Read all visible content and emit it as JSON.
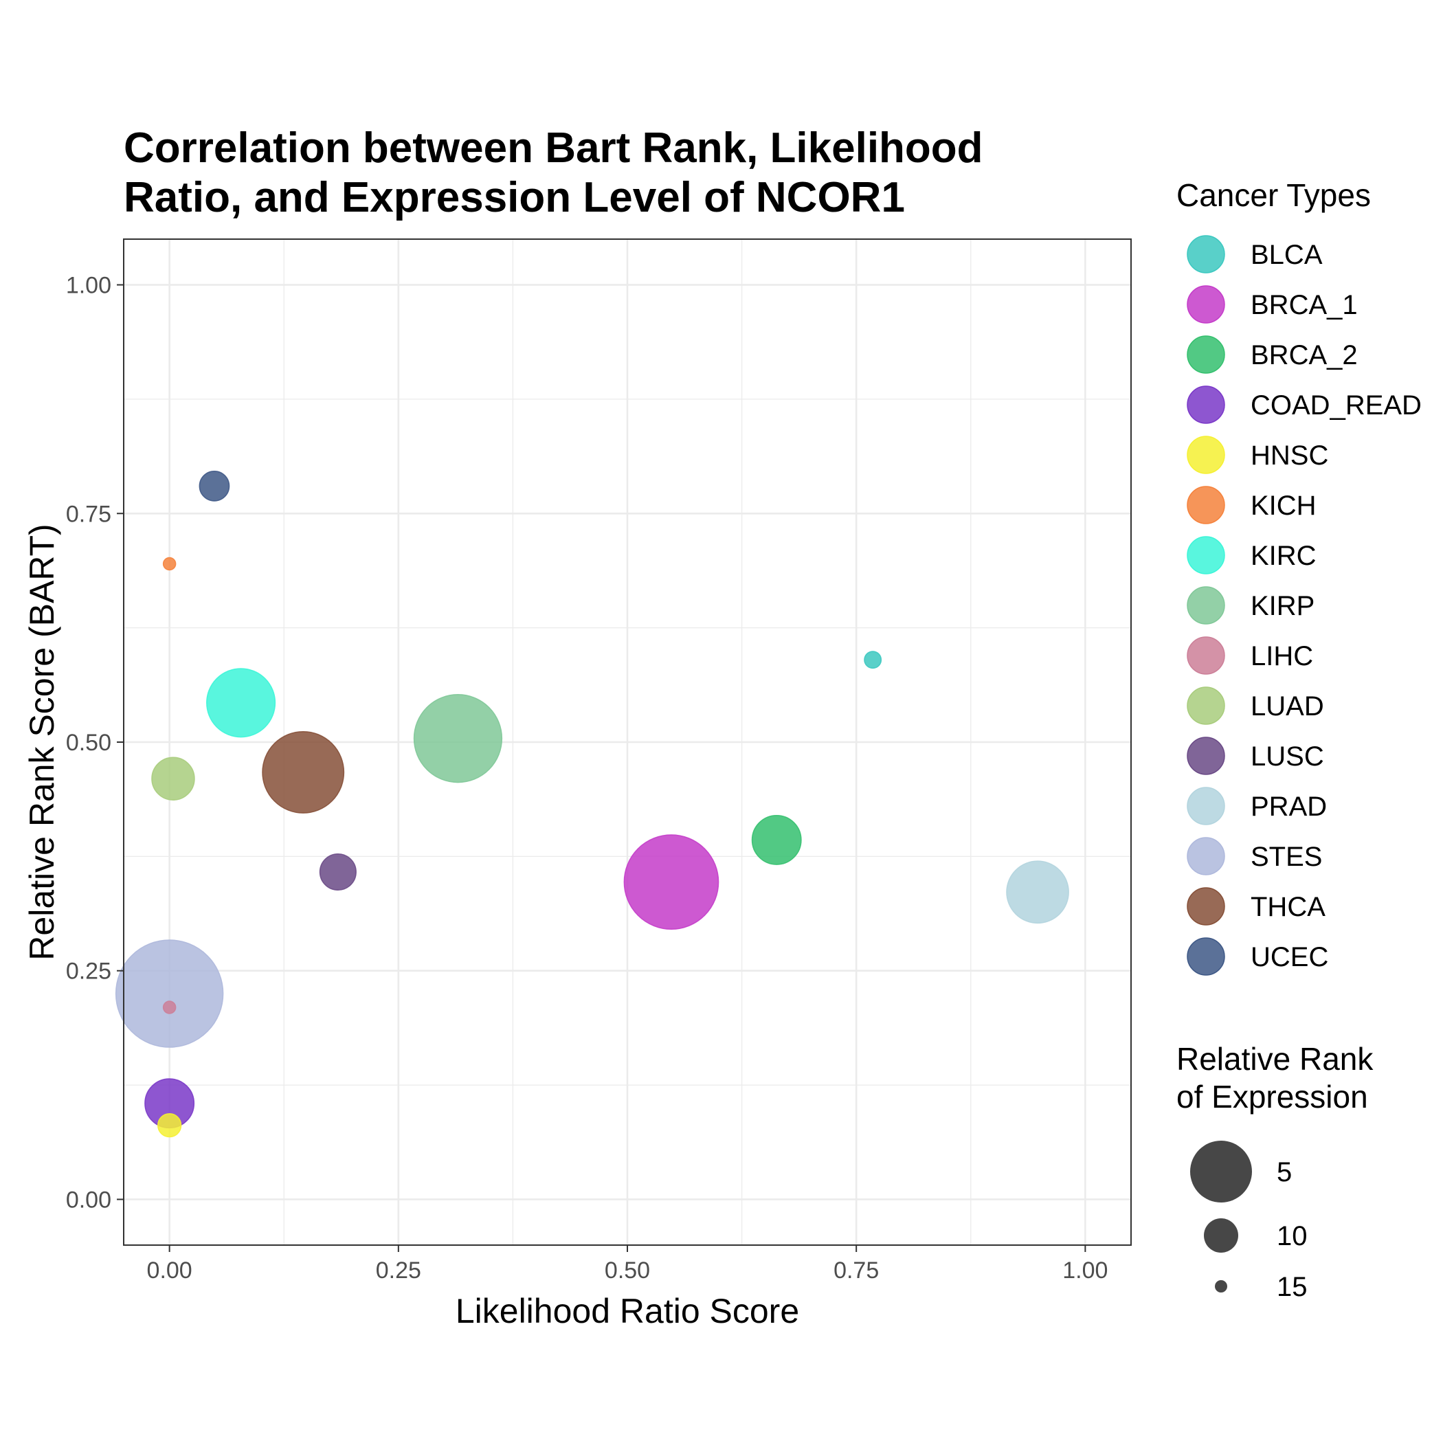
{
  "chart_data": {
    "type": "scatter",
    "title_lines": [
      "Correlation between Bart Rank, Likelihood",
      "Ratio, and Expression Level of NCOR1"
    ],
    "xlabel": "Likelihood Ratio Score",
    "ylabel": "Relative Rank Score (BART)",
    "xlim": [
      -0.05,
      1.05
    ],
    "ylim": [
      -0.05,
      1.05
    ],
    "x_ticks": [
      0,
      0.25,
      0.5,
      0.75,
      1
    ],
    "x_tick_labels": [
      "0.00",
      "0.25",
      "0.50",
      "0.75",
      "1.00"
    ],
    "y_ticks": [
      0,
      0.25,
      0.5,
      0.75,
      1
    ],
    "y_tick_labels": [
      "0.00",
      "0.25",
      "0.50",
      "0.75",
      "1.00"
    ],
    "grid": true,
    "color_legend": {
      "title": "Cancer Types",
      "placement": "right",
      "entries": [
        "BLCA",
        "BRCA_1",
        "BRCA_2",
        "COAD_READ",
        "HNSC",
        "KICH",
        "KIRC",
        "KIRP",
        "LIHC",
        "LUAD",
        "LUSC",
        "PRAD",
        "STES",
        "THCA",
        "UCEC"
      ]
    },
    "size_legend": {
      "title_lines": [
        "Relative Rank",
        "of Expression"
      ],
      "values": [
        5,
        10,
        15
      ],
      "value_labels": [
        "5",
        "10",
        "15"
      ]
    },
    "colors": {
      "BLCA": "#3cc8c0",
      "BRCA_1": "#c43cc9",
      "BRCA_2": "#34c06e",
      "COAD_READ": "#7a38c8",
      "HNSC": "#f5f032",
      "KICH": "#f5823c",
      "KIRC": "#3cf5d8",
      "KIRP": "#80c898",
      "LIHC": "#cc7f98",
      "LUAD": "#a8cc7c",
      "LUSC": "#6a4a86",
      "PRAD": "#b2d4de",
      "STES": "#aeb8dc",
      "THCA": "#865038",
      "UCEC": "#3e5886"
    },
    "points": [
      {
        "type": "STES",
        "x": 0.0,
        "y": 0.225,
        "expression_rank": 1
      },
      {
        "type": "BRCA_1",
        "x": 0.548,
        "y": 0.347,
        "expression_rank": 3
      },
      {
        "type": "KIRP",
        "x": 0.315,
        "y": 0.504,
        "expression_rank": 4
      },
      {
        "type": "THCA",
        "x": 0.146,
        "y": 0.467,
        "expression_rank": 5
      },
      {
        "type": "KIRC",
        "x": 0.078,
        "y": 0.543,
        "expression_rank": 7
      },
      {
        "type": "PRAD",
        "x": 0.948,
        "y": 0.336,
        "expression_rank": 8
      },
      {
        "type": "BRCA_2",
        "x": 0.663,
        "y": 0.393,
        "expression_rank": 10
      },
      {
        "type": "COAD_READ",
        "x": 0.0,
        "y": 0.105,
        "expression_rank": 10
      },
      {
        "type": "LUAD",
        "x": 0.004,
        "y": 0.46,
        "expression_rank": 11
      },
      {
        "type": "LUSC",
        "x": 0.184,
        "y": 0.358,
        "expression_rank": 12
      },
      {
        "type": "UCEC",
        "x": 0.049,
        "y": 0.78,
        "expression_rank": 13
      },
      {
        "type": "HNSC",
        "x": 0.0,
        "y": 0.081,
        "expression_rank": 14
      },
      {
        "type": "BLCA",
        "x": 0.768,
        "y": 0.59,
        "expression_rank": 15
      },
      {
        "type": "KICH",
        "x": 0.0,
        "y": 0.695,
        "expression_rank": 16
      },
      {
        "type": "LIHC",
        "x": 0.0,
        "y": 0.21,
        "expression_rank": 17
      }
    ]
  }
}
